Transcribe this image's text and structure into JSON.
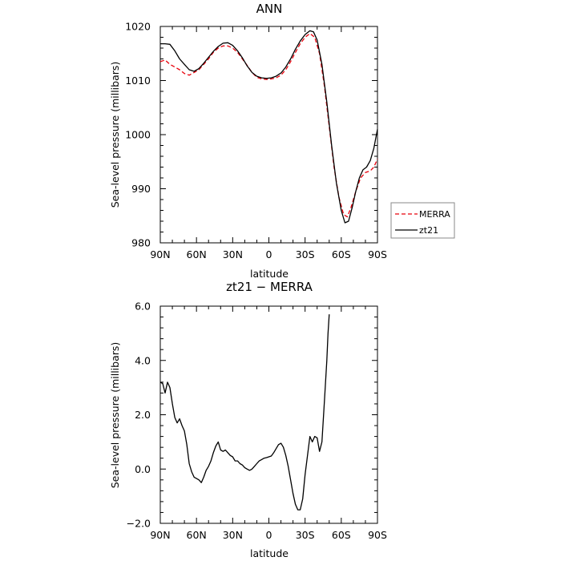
{
  "chart_data": [
    {
      "type": "line",
      "title": "ANN",
      "xlabel": "latitude",
      "ylabel": "Sea-level pressure (millibars)",
      "xticks": [
        {
          "lat": 90,
          "label": "90N"
        },
        {
          "lat": 60,
          "label": "60N"
        },
        {
          "lat": 30,
          "label": "30N"
        },
        {
          "lat": 0,
          "label": "0"
        },
        {
          "lat": -30,
          "label": "30S"
        },
        {
          "lat": -60,
          "label": "60S"
        },
        {
          "lat": -90,
          "label": "90S"
        }
      ],
      "ylim": [
        980,
        1020
      ],
      "yticks": [
        {
          "v": 980,
          "label": "980"
        },
        {
          "v": 990,
          "label": "990"
        },
        {
          "v": 1000,
          "label": "1000"
        },
        {
          "v": 1010,
          "label": "1010"
        },
        {
          "v": 1020,
          "label": "1020"
        }
      ],
      "legend_position": "right",
      "series": [
        {
          "name": "MERRA",
          "color": "#e8000b",
          "dash": "dashed",
          "points": [
            [
              90,
              1013.5
            ],
            [
              86,
              1013.8
            ],
            [
              82,
              1013
            ],
            [
              78,
              1012.5
            ],
            [
              74,
              1012
            ],
            [
              70,
              1011.3
            ],
            [
              66,
              1011
            ],
            [
              62,
              1011.5
            ],
            [
              58,
              1012
            ],
            [
              54,
              1013
            ],
            [
              50,
              1014
            ],
            [
              46,
              1015.2
            ],
            [
              42,
              1016
            ],
            [
              38,
              1016.4
            ],
            [
              34,
              1016.4
            ],
            [
              30,
              1016
            ],
            [
              26,
              1015.2
            ],
            [
              22,
              1014
            ],
            [
              18,
              1012.8
            ],
            [
              14,
              1011.5
            ],
            [
              10,
              1010.6
            ],
            [
              6,
              1010.3
            ],
            [
              2,
              1010.2
            ],
            [
              -2,
              1010.3
            ],
            [
              -6,
              1010.5
            ],
            [
              -10,
              1011
            ],
            [
              -14,
              1012
            ],
            [
              -18,
              1013.5
            ],
            [
              -22,
              1015.2
            ],
            [
              -26,
              1016.8
            ],
            [
              -30,
              1018
            ],
            [
              -34,
              1018.7
            ],
            [
              -38,
              1018
            ],
            [
              -42,
              1015
            ],
            [
              -46,
              1009
            ],
            [
              -50,
              1001.5
            ],
            [
              -54,
              994
            ],
            [
              -58,
              988.5
            ],
            [
              -62,
              985.2
            ],
            [
              -65,
              984.8
            ],
            [
              -68,
              986.5
            ],
            [
              -72,
              989.5
            ],
            [
              -76,
              992
            ],
            [
              -80,
              993
            ],
            [
              -84,
              993.3
            ],
            [
              -87,
              994
            ],
            [
              -90,
              995.5
            ]
          ]
        },
        {
          "name": "zt21",
          "color": "#000000",
          "dash": "solid",
          "points": [
            [
              90,
              1016.8
            ],
            [
              86,
              1016.8
            ],
            [
              82,
              1016.7
            ],
            [
              78,
              1015.5
            ],
            [
              74,
              1014
            ],
            [
              70,
              1013
            ],
            [
              66,
              1012
            ],
            [
              62,
              1011.7
            ],
            [
              58,
              1012.2
            ],
            [
              54,
              1013.2
            ],
            [
              50,
              1014.3
            ],
            [
              46,
              1015.4
            ],
            [
              42,
              1016.3
            ],
            [
              38,
              1016.9
            ],
            [
              34,
              1017
            ],
            [
              30,
              1016.5
            ],
            [
              26,
              1015.5
            ],
            [
              22,
              1014.2
            ],
            [
              18,
              1012.7
            ],
            [
              14,
              1011.5
            ],
            [
              10,
              1010.8
            ],
            [
              6,
              1010.5
            ],
            [
              2,
              1010.4
            ],
            [
              -2,
              1010.5
            ],
            [
              -6,
              1010.8
            ],
            [
              -10,
              1011.4
            ],
            [
              -14,
              1012.5
            ],
            [
              -18,
              1014
            ],
            [
              -22,
              1015.8
            ],
            [
              -26,
              1017.3
            ],
            [
              -30,
              1018.5
            ],
            [
              -34,
              1019.2
            ],
            [
              -37,
              1019
            ],
            [
              -40,
              1017.5
            ],
            [
              -44,
              1013
            ],
            [
              -48,
              1006
            ],
            [
              -52,
              998
            ],
            [
              -56,
              991
            ],
            [
              -60,
              986
            ],
            [
              -63,
              983.7
            ],
            [
              -66,
              984
            ],
            [
              -69,
              986.5
            ],
            [
              -72,
              989.5
            ],
            [
              -75,
              992
            ],
            [
              -78,
              993.5
            ],
            [
              -81,
              994
            ],
            [
              -84,
              995.2
            ],
            [
              -87,
              997.5
            ],
            [
              -90,
              1001
            ]
          ]
        }
      ]
    },
    {
      "type": "line",
      "title": "zt21 − MERRA",
      "xlabel": "latitude",
      "ylabel": "Sea-level pressure (millibars)",
      "xticks": [
        {
          "lat": 90,
          "label": "90N"
        },
        {
          "lat": 60,
          "label": "60N"
        },
        {
          "lat": 30,
          "label": "30N"
        },
        {
          "lat": 0,
          "label": "0"
        },
        {
          "lat": -30,
          "label": "30S"
        },
        {
          "lat": -60,
          "label": "60S"
        },
        {
          "lat": -90,
          "label": "90S"
        }
      ],
      "ylim": [
        -2.0,
        6.0
      ],
      "yticks": [
        {
          "v": -2,
          "label": "−2.0"
        },
        {
          "v": 0,
          "label": "0.0"
        },
        {
          "v": 2,
          "label": "2.0"
        },
        {
          "v": 4,
          "label": "4.0"
        },
        {
          "v": 6,
          "label": "6.0"
        }
      ],
      "series": [
        {
          "name": "",
          "color": "#000000",
          "dash": "solid",
          "points": [
            [
              90,
              3.2
            ],
            [
              88,
              3.15
            ],
            [
              86,
              2.8
            ],
            [
              84,
              3.2
            ],
            [
              82,
              3.0
            ],
            [
              80,
              2.4
            ],
            [
              78,
              1.9
            ],
            [
              76,
              1.7
            ],
            [
              74,
              1.85
            ],
            [
              72,
              1.6
            ],
            [
              70,
              1.4
            ],
            [
              68,
              0.9
            ],
            [
              66,
              0.2
            ],
            [
              64,
              -0.1
            ],
            [
              62,
              -0.3
            ],
            [
              60,
              -0.35
            ],
            [
              58,
              -0.4
            ],
            [
              56,
              -0.5
            ],
            [
              54,
              -0.3
            ],
            [
              52,
              -0.05
            ],
            [
              50,
              0.1
            ],
            [
              48,
              0.3
            ],
            [
              46,
              0.6
            ],
            [
              44,
              0.85
            ],
            [
              42,
              1.0
            ],
            [
              40,
              0.7
            ],
            [
              38,
              0.65
            ],
            [
              36,
              0.7
            ],
            [
              34,
              0.6
            ],
            [
              32,
              0.5
            ],
            [
              30,
              0.45
            ],
            [
              28,
              0.3
            ],
            [
              26,
              0.3
            ],
            [
              24,
              0.2
            ],
            [
              22,
              0.15
            ],
            [
              20,
              0.05
            ],
            [
              18,
              0.0
            ],
            [
              16,
              -0.05
            ],
            [
              14,
              0.0
            ],
            [
              12,
              0.1
            ],
            [
              10,
              0.2
            ],
            [
              8,
              0.3
            ],
            [
              6,
              0.35
            ],
            [
              4,
              0.4
            ],
            [
              2,
              0.42
            ],
            [
              0,
              0.45
            ],
            [
              -2,
              0.48
            ],
            [
              -4,
              0.6
            ],
            [
              -6,
              0.75
            ],
            [
              -8,
              0.9
            ],
            [
              -10,
              0.95
            ],
            [
              -12,
              0.8
            ],
            [
              -14,
              0.5
            ],
            [
              -16,
              0.1
            ],
            [
              -18,
              -0.4
            ],
            [
              -20,
              -0.9
            ],
            [
              -22,
              -1.3
            ],
            [
              -24,
              -1.5
            ],
            [
              -26,
              -1.5
            ],
            [
              -28,
              -1.1
            ],
            [
              -30,
              -0.2
            ],
            [
              -32,
              0.5
            ],
            [
              -34,
              1.2
            ],
            [
              -36,
              1.0
            ],
            [
              -38,
              1.2
            ],
            [
              -40,
              1.15
            ],
            [
              -42,
              0.65
            ],
            [
              -44,
              1.0
            ],
            [
              -46,
              2.5
            ],
            [
              -48,
              4.0
            ],
            [
              -49,
              5.0
            ],
            [
              -50,
              5.7
            ]
          ]
        }
      ]
    }
  ]
}
